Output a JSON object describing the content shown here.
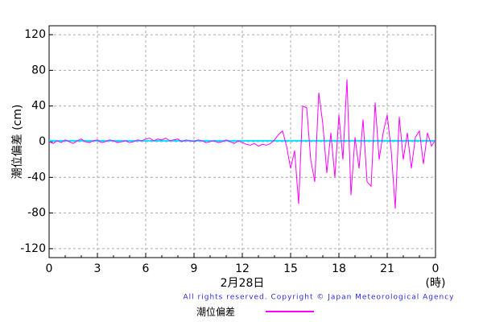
{
  "chart_data": {
    "type": "line",
    "ylabel": "潮位偏差 (cm)",
    "xlabel": "2月28日",
    "xunit": "(時)",
    "copyright": "All rights reserved. Copyright © Japan Meteorological Agency",
    "xlim": [
      0,
      24
    ],
    "ylim": [
      -130,
      130
    ],
    "xticks": [
      0,
      3,
      6,
      9,
      12,
      15,
      18,
      21,
      {
        "value": 24,
        "label": "0"
      }
    ],
    "yticks": [
      -120,
      -80,
      -40,
      0,
      40,
      80,
      120
    ],
    "grid": true,
    "reference_line": {
      "value": 1,
      "color": "#00e5ff"
    },
    "x": [
      0,
      0.25,
      0.5,
      0.75,
      1,
      1.25,
      1.5,
      1.75,
      2,
      2.25,
      2.5,
      2.75,
      3,
      3.25,
      3.5,
      3.75,
      4,
      4.25,
      4.5,
      4.75,
      5,
      5.25,
      5.5,
      5.75,
      6,
      6.25,
      6.5,
      6.75,
      7,
      7.25,
      7.5,
      7.75,
      8,
      8.25,
      8.5,
      8.75,
      9,
      9.25,
      9.5,
      9.75,
      10,
      10.25,
      10.5,
      10.75,
      11,
      11.25,
      11.5,
      11.75,
      12,
      12.25,
      12.5,
      12.75,
      13,
      13.25,
      13.5,
      13.75,
      14,
      14.25,
      14.5,
      14.75,
      15,
      15.25,
      15.5,
      15.75,
      16,
      16.25,
      16.5,
      16.75,
      17,
      17.25,
      17.5,
      17.75,
      18,
      18.25,
      18.5,
      18.75,
      19,
      19.25,
      19.5,
      19.75,
      20,
      20.25,
      20.5,
      20.75,
      21,
      21.25,
      21.5,
      21.75,
      22,
      22.25,
      22.5,
      22.75,
      23,
      23.25,
      23.5,
      23.75,
      24
    ],
    "series": [
      {
        "name": "潮位偏差",
        "color": "#ff00ff",
        "values": [
          0,
          -2,
          1,
          -1,
          2,
          0,
          -2,
          1,
          3,
          0,
          -1,
          1,
          2,
          -1,
          0,
          2,
          1,
          -1,
          0,
          1,
          -1,
          0,
          2,
          1,
          3,
          4,
          1,
          3,
          2,
          4,
          1,
          2,
          3,
          0,
          2,
          1,
          0,
          2,
          1,
          -1,
          0,
          1,
          -1,
          0,
          2,
          0,
          -2,
          1,
          -1,
          -3,
          -4,
          -2,
          -5,
          -3,
          -4,
          -2,
          2,
          8,
          12,
          -5,
          -30,
          -10,
          -70,
          40,
          38,
          -20,
          -45,
          55,
          20,
          -35,
          10,
          -40,
          30,
          -20,
          70,
          -60,
          5,
          -30,
          25,
          -45,
          -50,
          44,
          -20,
          10,
          30,
          -10,
          -75,
          28,
          -20,
          10,
          -30,
          5,
          12,
          -25,
          10,
          -5,
          2
        ]
      }
    ]
  }
}
